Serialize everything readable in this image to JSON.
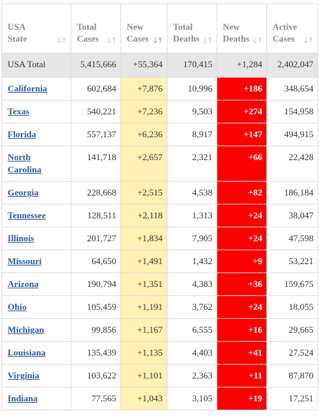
{
  "headers": {
    "state": [
      "USA",
      "State"
    ],
    "total_cases": [
      "Total",
      "Cases"
    ],
    "new_cases": [
      "New",
      "Cases"
    ],
    "total_deaths": [
      "Total",
      "Deaths"
    ],
    "new_deaths": [
      "New",
      "Deaths"
    ],
    "active_cases": [
      "Active",
      "Cases"
    ]
  },
  "total_row": {
    "state": "USA Total",
    "total_cases": "5,415,666",
    "new_cases": "+55,364",
    "total_deaths": "170,415",
    "new_deaths": "+1,284",
    "active_cases": "2,402,047"
  },
  "rows": [
    {
      "state": "California",
      "total_cases": "602,684",
      "new_cases": "+7,876",
      "total_deaths": "10,996",
      "new_deaths": "+186",
      "active_cases": "348,654"
    },
    {
      "state": "Texas",
      "total_cases": "540,221",
      "new_cases": "+7,236",
      "total_deaths": "9,503",
      "new_deaths": "+274",
      "active_cases": "154,958"
    },
    {
      "state": "Florida",
      "total_cases": "557,137",
      "new_cases": "+6,236",
      "total_deaths": "8,917",
      "new_deaths": "+147",
      "active_cases": "494,915"
    },
    {
      "state": "North Carolina",
      "total_cases": "141,718",
      "new_cases": "+2,657",
      "total_deaths": "2,321",
      "new_deaths": "+66",
      "active_cases": "22,428"
    },
    {
      "state": "Georgia",
      "total_cases": "228,668",
      "new_cases": "+2,515",
      "total_deaths": "4,538",
      "new_deaths": "+82",
      "active_cases": "186,184"
    },
    {
      "state": "Tennessee",
      "total_cases": "128,511",
      "new_cases": "+2,118",
      "total_deaths": "1,313",
      "new_deaths": "+24",
      "active_cases": "38,047"
    },
    {
      "state": "Illinois",
      "total_cases": "201,727",
      "new_cases": "+1,834",
      "total_deaths": "7,905",
      "new_deaths": "+24",
      "active_cases": "47,598"
    },
    {
      "state": "Missouri",
      "total_cases": "64,650",
      "new_cases": "+1,491",
      "total_deaths": "1,432",
      "new_deaths": "+9",
      "active_cases": "53,221"
    },
    {
      "state": "Arizona",
      "total_cases": "190,794",
      "new_cases": "+1,351",
      "total_deaths": "4,383",
      "new_deaths": "+36",
      "active_cases": "159,675"
    },
    {
      "state": "Ohio",
      "total_cases": "105,459",
      "new_cases": "+1,191",
      "total_deaths": "3,762",
      "new_deaths": "+24",
      "active_cases": "18,055"
    },
    {
      "state": "Michigan",
      "total_cases": "99,856",
      "new_cases": "+1,167",
      "total_deaths": "6,555",
      "new_deaths": "+16",
      "active_cases": "29,665"
    },
    {
      "state": "Louisiana",
      "total_cases": "135,439",
      "new_cases": "+1,135",
      "total_deaths": "4,403",
      "new_deaths": "+41",
      "active_cases": "27,524"
    },
    {
      "state": "Virginia",
      "total_cases": "103,622",
      "new_cases": "+1,101",
      "total_deaths": "2,363",
      "new_deaths": "+11",
      "active_cases": "87,870"
    },
    {
      "state": "Indiana",
      "total_cases": "77,565",
      "new_cases": "+1,043",
      "total_deaths": "3,105",
      "new_deaths": "+19",
      "active_cases": "17,251"
    }
  ],
  "sort_icons": {
    "state": "sort-icon",
    "total_cases": "sort-icon",
    "new_cases": "sort-desc-active-icon",
    "total_deaths": "sort-icon",
    "new_deaths": "sort-icon",
    "active_cases": "sort-icon"
  },
  "colors": {
    "new_cases_bg": "#fff0b3",
    "new_deaths_bg": "#ff0000",
    "state_link": "#2a5d9f",
    "total_row_bg": "#e6e6e6"
  }
}
